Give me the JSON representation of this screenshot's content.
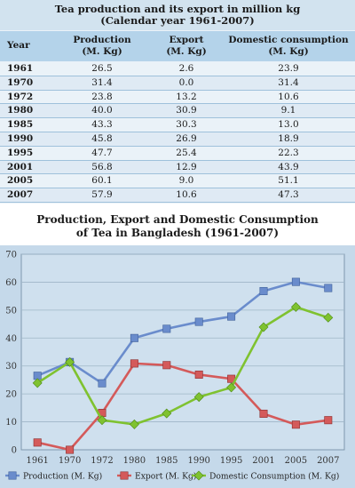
{
  "table": {
    "title_line1": "Tea production and its export in million kg",
    "title_line2": "(Calendar year 1961-2007)",
    "headers": {
      "year": "Year",
      "production_l1": "Production",
      "production_l2": "(M. Kg)",
      "export_l1": "Export",
      "export_l2": "(M. Kg)",
      "domestic_l1": "Domestic consumption",
      "domestic_l2": "(M. Kg)"
    },
    "rows": [
      {
        "year": "1961",
        "production": "26.5",
        "export": "2.6",
        "domestic": "23.9"
      },
      {
        "year": "1970",
        "production": "31.4",
        "export": "0.0",
        "domestic": "31.4"
      },
      {
        "year": "1972",
        "production": "23.8",
        "export": "13.2",
        "domestic": "10.6"
      },
      {
        "year": "1980",
        "production": "40.0",
        "export": "30.9",
        "domestic": "9.1"
      },
      {
        "year": "1985",
        "production": "43.3",
        "export": "30.3",
        "domestic": "13.0"
      },
      {
        "year": "1990",
        "production": "45.8",
        "export": "26.9",
        "domestic": "18.9"
      },
      {
        "year": "1995",
        "production": "47.7",
        "export": "25.4",
        "domestic": "22.3"
      },
      {
        "year": "2001",
        "production": "56.8",
        "export": "12.9",
        "domestic": "43.9"
      },
      {
        "year": "2005",
        "production": "60.1",
        "export": "9.0",
        "domestic": "51.1"
      },
      {
        "year": "2007",
        "production": "57.9",
        "export": "10.6",
        "domestic": "47.3"
      }
    ]
  },
  "chart_data": {
    "type": "line",
    "title_line1": "Production, Export and Domestic Consumption",
    "title_line2": "of Tea in Bangladesh (1961-2007)",
    "categories": [
      "1961",
      "1970",
      "1972",
      "1980",
      "1985",
      "1990",
      "1995",
      "2001",
      "2005",
      "2007"
    ],
    "ylim": [
      0,
      70
    ],
    "yticks": [
      0,
      10,
      20,
      30,
      40,
      50,
      60,
      70
    ],
    "grid": true,
    "legend_position": "bottom",
    "series": [
      {
        "name": "Production (M. Kg)",
        "color": "#6a8ccc",
        "marker": "diamond",
        "values": [
          26.5,
          31.4,
          23.8,
          40.0,
          43.3,
          45.8,
          47.7,
          56.8,
          60.1,
          57.9
        ]
      },
      {
        "name": "Export (M. Kg)",
        "color": "#d45a5a",
        "marker": "square",
        "values": [
          2.6,
          0.0,
          13.2,
          30.9,
          30.3,
          26.9,
          25.4,
          12.9,
          9.0,
          10.6
        ]
      },
      {
        "name": "Domestic Consumption (M. Kg)",
        "color": "#7fc230",
        "marker": "triangle",
        "values": [
          23.9,
          31.4,
          10.6,
          9.1,
          13.0,
          18.9,
          22.3,
          43.9,
          51.1,
          47.3
        ]
      }
    ]
  }
}
